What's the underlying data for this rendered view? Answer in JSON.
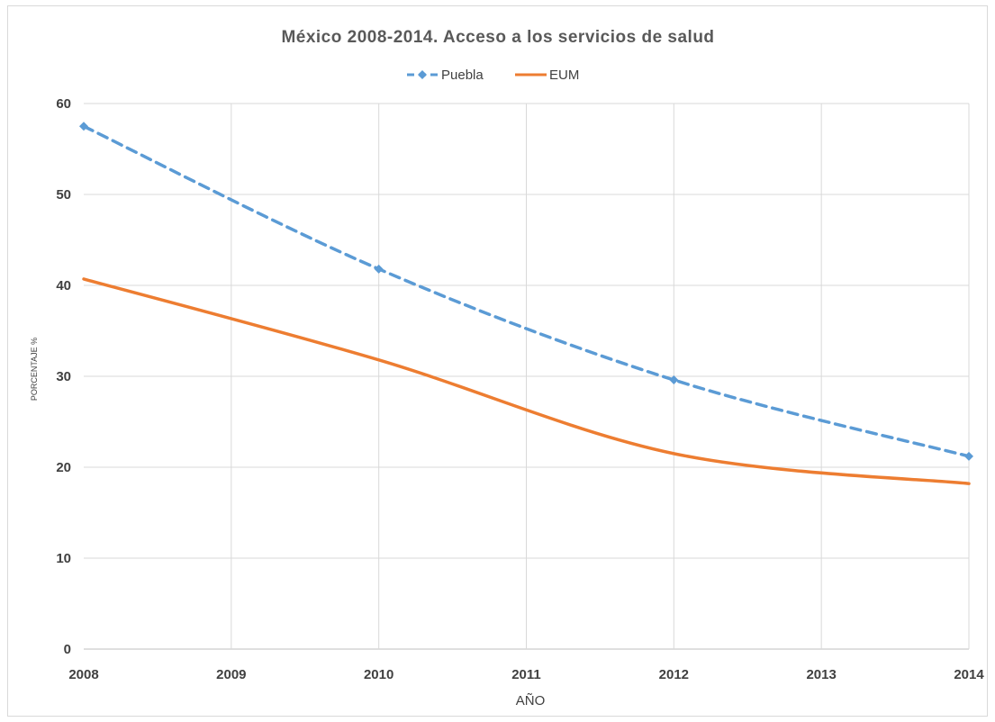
{
  "chart_data": {
    "type": "line",
    "title": "México 2008-2014.  Acceso a los servicios de salud",
    "xlabel": "AÑO",
    "ylabel": "PORCENTAJE %",
    "x": [
      "2008",
      "2009",
      "2010",
      "2011",
      "2012",
      "2013",
      "2014"
    ],
    "ylim": [
      0,
      60
    ],
    "yticks": [
      0,
      10,
      20,
      30,
      40,
      50,
      60
    ],
    "grid": true,
    "legend_position": "top",
    "series": [
      {
        "name": "Puebla",
        "values": [
          57.5,
          null,
          41.8,
          null,
          29.6,
          null,
          21.2
        ],
        "color": "#5b9bd5",
        "style": "dashed",
        "marker": "diamond"
      },
      {
        "name": "EUM",
        "values": [
          40.7,
          null,
          31.8,
          null,
          21.5,
          null,
          18.2
        ],
        "color": "#ed7d31",
        "style": "solid",
        "marker": "none"
      }
    ]
  }
}
